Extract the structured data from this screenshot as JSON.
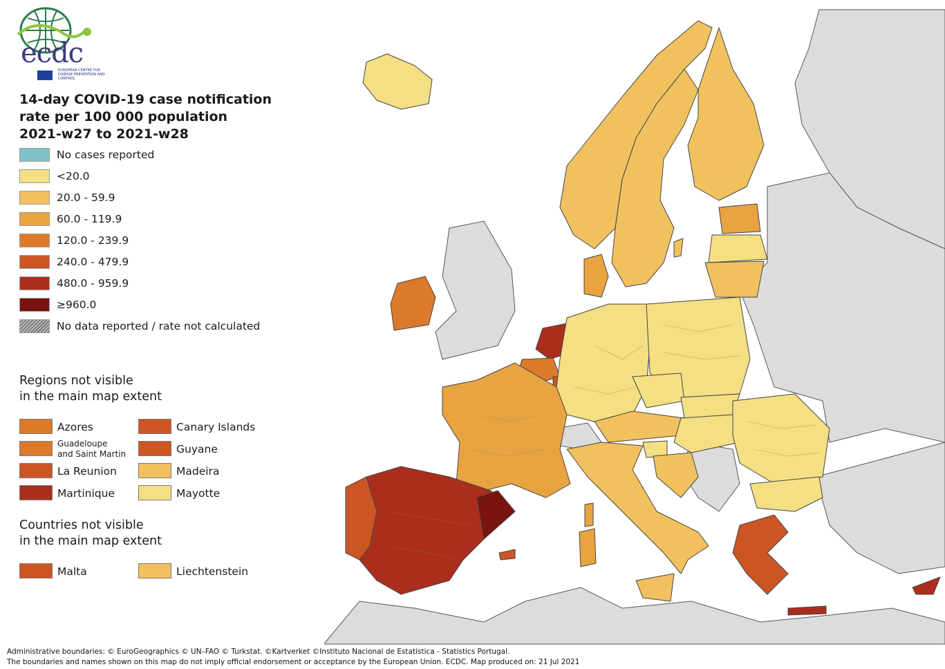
{
  "logo": {
    "text": "ecdc",
    "subtitle": "European Centre for Disease Prevention and Control"
  },
  "title": {
    "line1": "14-day COVID-19 case notification",
    "line2": "rate per 100 000 population",
    "line3": "2021-w27 to 2021-w28"
  },
  "legend": [
    {
      "label": "No cases reported",
      "color": "#80c1c9"
    },
    {
      "label": "<20.0",
      "color": "#f4df82"
    },
    {
      "label": "20.0 - 59.9",
      "color": "#f1c15f"
    },
    {
      "label": "60.0 - 119.9",
      "color": "#e8a441"
    },
    {
      "label": "120.0 - 239.9",
      "color": "#dc7a2c"
    },
    {
      "label": "240.0 - 479.9",
      "color": "#cc5524"
    },
    {
      "label": "480.0 - 959.9",
      "color": "#ab2e1d"
    },
    {
      "label": "≥960.0",
      "color": "#7a140f"
    },
    {
      "label": "No data reported / rate not calculated",
      "color": "hatched"
    }
  ],
  "regions_not_visible": {
    "title_line1": "Regions not visible",
    "title_line2": "in the main map extent",
    "items": [
      {
        "label": "Azores",
        "color": "#dc7a2c"
      },
      {
        "label": "Canary Islands",
        "color": "#cc5524"
      },
      {
        "label": "Guadeloupe\nand Saint Martin",
        "color": "#dc7a2c"
      },
      {
        "label": "Guyane",
        "color": "#cc5524"
      },
      {
        "label": "La Reunion",
        "color": "#cc5524"
      },
      {
        "label": "Madeira",
        "color": "#f1c15f"
      },
      {
        "label": "Martinique",
        "color": "#ab2e1d"
      },
      {
        "label": "Mayotte",
        "color": "#f4df82"
      }
    ]
  },
  "countries_not_visible": {
    "title_line1": "Countries not visible",
    "title_line2": "in the main map extent",
    "items": [
      {
        "label": "Malta",
        "color": "#cc5524"
      },
      {
        "label": "Liechtenstein",
        "color": "#f1c15f"
      }
    ]
  },
  "map_regions": [
    {
      "name": "Iceland",
      "color": "#f4df82"
    },
    {
      "name": "Norway",
      "color": "#f1c15f"
    },
    {
      "name": "Sweden",
      "color": "#f1c15f"
    },
    {
      "name": "Finland",
      "color": "#f1c15f"
    },
    {
      "name": "Estonia",
      "color": "#e8a441"
    },
    {
      "name": "Latvia",
      "color": "#f4df82"
    },
    {
      "name": "Lithuania",
      "color": "#f1c15f"
    },
    {
      "name": "Denmark",
      "color": "#e8a441"
    },
    {
      "name": "Ireland",
      "color": "#dc7a2c"
    },
    {
      "name": "Netherlands",
      "color": "#ab2e1d"
    },
    {
      "name": "Belgium",
      "color": "#dc7a2c"
    },
    {
      "name": "Luxembourg",
      "color": "#cc5524"
    },
    {
      "name": "Germany",
      "color": "#f4df82"
    },
    {
      "name": "Poland",
      "color": "#f4df82"
    },
    {
      "name": "Czechia",
      "color": "#f4df82"
    },
    {
      "name": "Slovakia",
      "color": "#f4df82"
    },
    {
      "name": "Austria",
      "color": "#f1c15f"
    },
    {
      "name": "Hungary",
      "color": "#f4df82"
    },
    {
      "name": "Romania",
      "color": "#f4df82"
    },
    {
      "name": "Bulgaria",
      "color": "#f4df82"
    },
    {
      "name": "Slovenia",
      "color": "#f4df82"
    },
    {
      "name": "Croatia",
      "color": "#f1c15f"
    },
    {
      "name": "France",
      "color": "#e8a441"
    },
    {
      "name": "Italy",
      "color": "#f1c15f"
    },
    {
      "name": "Spain",
      "color": "#ab2e1d"
    },
    {
      "name": "Portugal",
      "color": "#cc5524"
    },
    {
      "name": "Greece",
      "color": "#cc5524"
    },
    {
      "name": "Cyprus",
      "color": "#ab2e1d"
    }
  ],
  "footer": {
    "line1": "Administrative boundaries: © EuroGeographics © UN–FAO © Turkstat. ©Kartverket ©Instituto Nacional de Estatística - Statistics Portugal.",
    "line2": "The boundaries and names shown on this map do not imply official endorsement or acceptance by the European Union. ECDC. Map produced on: 21 Jul 2021"
  }
}
